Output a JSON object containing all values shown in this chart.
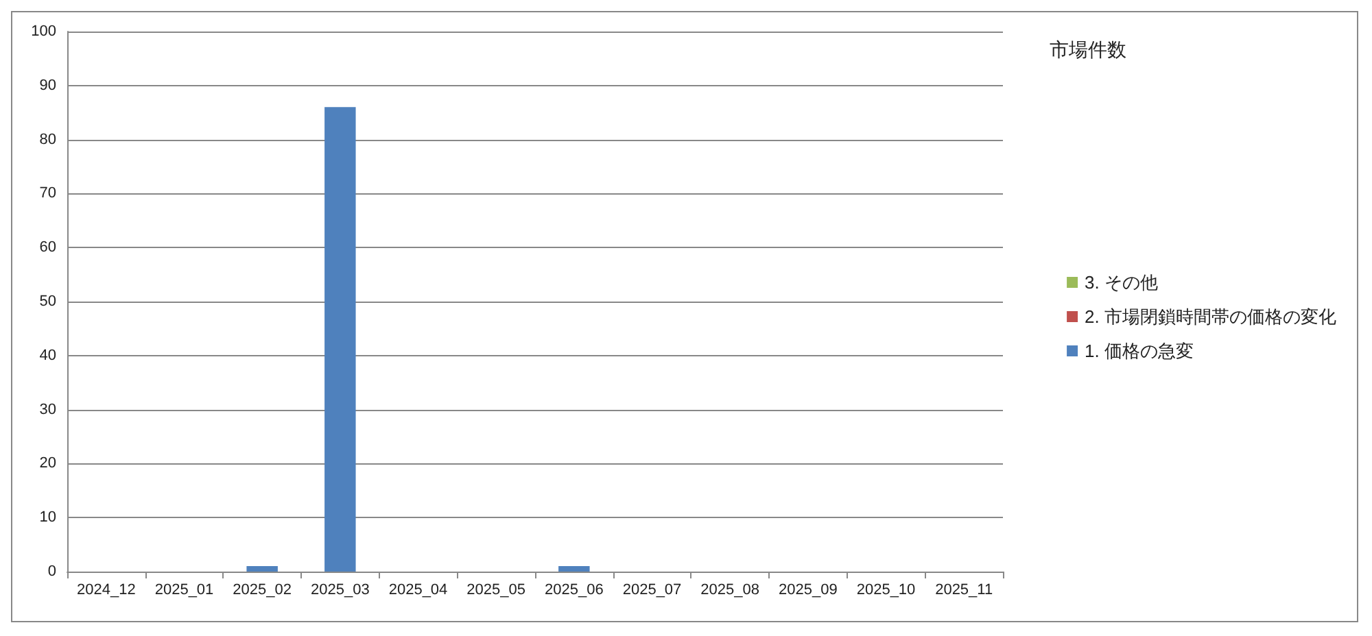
{
  "chart_data": {
    "type": "bar",
    "stacked": true,
    "legend_title": "市場件数",
    "categories": [
      "2024_12",
      "2025_01",
      "2025_02",
      "2025_03",
      "2025_04",
      "2025_05",
      "2025_06",
      "2025_07",
      "2025_08",
      "2025_09",
      "2025_10",
      "2025_11"
    ],
    "series": [
      {
        "name": "1. 価格の急変",
        "color": "#4f81bd",
        "values": [
          0,
          0,
          1,
          86,
          0,
          0,
          1,
          0,
          0,
          0,
          0,
          0
        ]
      },
      {
        "name": "2. 市場閉鎖時間帯の価格の変化",
        "color": "#c0504d",
        "values": [
          0,
          0,
          0,
          0,
          0,
          0,
          0,
          0,
          0,
          0,
          0,
          0
        ]
      },
      {
        "name": "3. その他",
        "color": "#9bbb59",
        "values": [
          0,
          0,
          0,
          0,
          0,
          0,
          0,
          0,
          0,
          0,
          0,
          0
        ]
      }
    ],
    "ylim": [
      0,
      100
    ],
    "yticks": [
      0,
      10,
      20,
      30,
      40,
      50,
      60,
      70,
      80,
      90,
      100
    ],
    "grid": "y",
    "legend": "right"
  }
}
